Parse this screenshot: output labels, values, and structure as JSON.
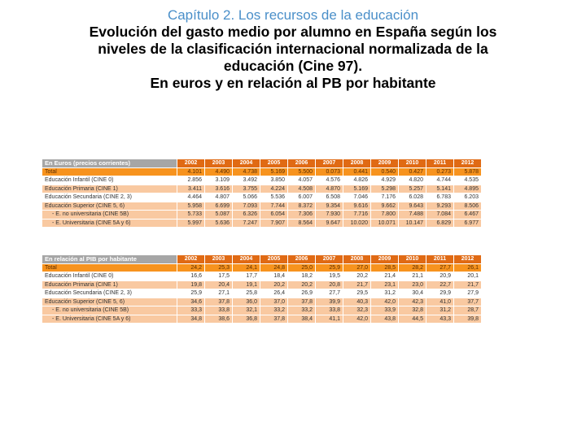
{
  "header": {
    "chapter": "Capítulo 2. Los recursos de la educación",
    "title_lines": [
      "Evolución del gasto medio por alumno en España según los",
      "niveles de la clasificación internacional normalizada de la",
      "educación (Cine 97).",
      "En euros y en relación al PB por habitante"
    ]
  },
  "colors": {
    "chapter_blue": "#4a8fc9",
    "header_orange": "#e06a14",
    "total_orange": "#f7931e",
    "peach_row": "#f9c9a1",
    "label_gray": "#a6a6a6"
  },
  "years": [
    "2002",
    "2003",
    "2004",
    "2005",
    "2006",
    "2007",
    "2008",
    "2009",
    "2010",
    "2011",
    "2012"
  ],
  "table_euros": {
    "title": "En Euros (precios corrientes)",
    "rows": [
      {
        "label": "Total",
        "values": [
          "4.101",
          "4.490",
          "4.738",
          "5.169",
          "5.500",
          "0.073",
          "0.441",
          "0.540",
          "0.427",
          "0.273",
          "5.878"
        ]
      },
      {
        "label": "Educación Infantil (CINE 0)",
        "values": [
          "2.856",
          "3.109",
          "3.492",
          "3.850",
          "4.057",
          "4.576",
          "4.826",
          "4.929",
          "4.820",
          "4.744",
          "4.535"
        ]
      },
      {
        "label": "Educación Primaria (CINE 1)",
        "values": [
          "3.411",
          "3.616",
          "3.755",
          "4.224",
          "4.508",
          "4.870",
          "5.169",
          "5.298",
          "5.257",
          "5.141",
          "4.895"
        ]
      },
      {
        "label": "Educación Secundaria (CINE 2, 3)",
        "values": [
          "4.464",
          "4.807",
          "5.066",
          "5.536",
          "6.007",
          "6.508",
          "7.046",
          "7.176",
          "6.028",
          "6.783",
          "6.203"
        ]
      },
      {
        "label": "Educación Superior (CINE 5, 6)",
        "values": [
          "5.958",
          "6.699",
          "7.093",
          "7.744",
          "8.372",
          "9.354",
          "9.616",
          "9.662",
          "9.643",
          "9.293",
          "8.506"
        ]
      },
      {
        "label": "- E. no universitaria (CINE 5B)",
        "values": [
          "5.733",
          "5.087",
          "6.326",
          "6.054",
          "7.306",
          "7.930",
          "7.716",
          "7.800",
          "7.488",
          "7.084",
          "6.467"
        ]
      },
      {
        "label": "- E. Universitaria (CINE 5A y 6)",
        "values": [
          "5.997",
          "5.636",
          "7.247",
          "7.907",
          "8.564",
          "9.647",
          "10.020",
          "10.071",
          "10.147",
          "6.829",
          "6.977"
        ]
      }
    ]
  },
  "table_pib": {
    "title": "En relación al PIB por habitante",
    "rows": [
      {
        "label": "Total",
        "values": [
          "24,2",
          "25,3",
          "24,1",
          "24,8",
          "25,0",
          "25,9",
          "27,0",
          "28,5",
          "28,2",
          "27,7",
          "26,1"
        ]
      },
      {
        "label": "Educación Infantil (CINE 0)",
        "values": [
          "16,6",
          "17,5",
          "17,7",
          "18,4",
          "18,2",
          "19,5",
          "20,2",
          "21,4",
          "21,1",
          "20,9",
          "20,1"
        ]
      },
      {
        "label": "Educación Primaria (CINE 1)",
        "values": [
          "19,8",
          "20,4",
          "19,1",
          "20,2",
          "20,2",
          "20,8",
          "21,7",
          "23,1",
          "23,0",
          "22,7",
          "21,7"
        ]
      },
      {
        "label": "Educación Secundaria (CINE 2, 3)",
        "values": [
          "25,9",
          "27,1",
          "25,8",
          "26,4",
          "26,9",
          "27,7",
          "29,5",
          "31,2",
          "30,4",
          "29,9",
          "27,9"
        ]
      },
      {
        "label": "Educación Superior (CINE 5, 6)",
        "values": [
          "34,6",
          "37,8",
          "36,0",
          "37,0",
          "37,8",
          "39,9",
          "40,3",
          "42,0",
          "42,3",
          "41,0",
          "37,7"
        ]
      },
      {
        "label": "- E. no universitaria (CINE 5B)",
        "values": [
          "33,3",
          "33,8",
          "32,1",
          "33,2",
          "33,2",
          "33,8",
          "32,3",
          "33,9",
          "32,8",
          "31,2",
          "28,7"
        ]
      },
      {
        "label": "- E. Universitaria (CINE 5A y 6)",
        "values": [
          "34,8",
          "38,6",
          "36,8",
          "37,8",
          "38,4",
          "41,1",
          "42,0",
          "43,8",
          "44,5",
          "43,3",
          "39,8"
        ]
      }
    ]
  }
}
